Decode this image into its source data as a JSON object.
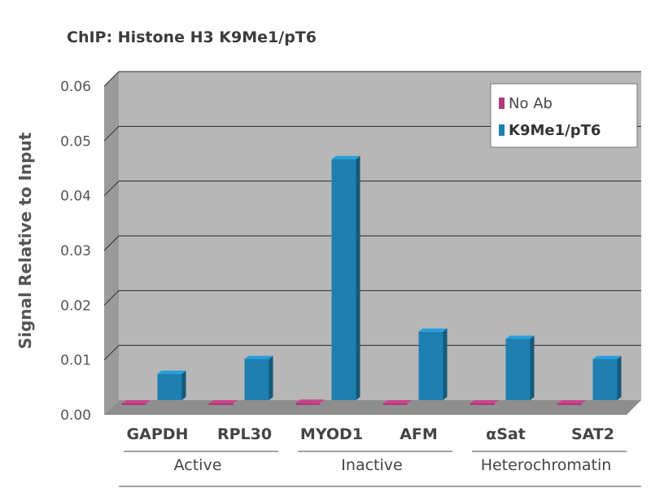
{
  "chart_data": {
    "type": "bar",
    "title": "ChIP: Histone H3 K9Me1/pT6",
    "xlabel": "",
    "ylabel": "Signal Relative to Input",
    "ylim": [
      0,
      0.06
    ],
    "yticks": [
      "0.00",
      "0.01",
      "0.02",
      "0.03",
      "0.04",
      "0.05",
      "0.06"
    ],
    "categories": [
      "GAPDH",
      "RPL30",
      "MYOD1",
      "AFM",
      "αSat",
      "SAT2"
    ],
    "groups": [
      {
        "label": "Active",
        "categories": [
          "GAPDH",
          "RPL30"
        ]
      },
      {
        "label": "Inactive",
        "categories": [
          "MYOD1",
          "AFM"
        ]
      },
      {
        "label": "Heterochromatin",
        "categories": [
          "αSat",
          "SAT2"
        ]
      }
    ],
    "series": [
      {
        "name": "No Ab",
        "color": "#b03a7a",
        "values": [
          0.0003,
          0.0003,
          0.0004,
          0.0003,
          0.0003,
          0.0003
        ]
      },
      {
        "name": "K9Me1/pT6",
        "color": "#1e7fb0",
        "values": [
          0.0048,
          0.0075,
          0.044,
          0.0125,
          0.0112,
          0.0075
        ]
      }
    ],
    "grid": true,
    "legend": "top-right"
  }
}
